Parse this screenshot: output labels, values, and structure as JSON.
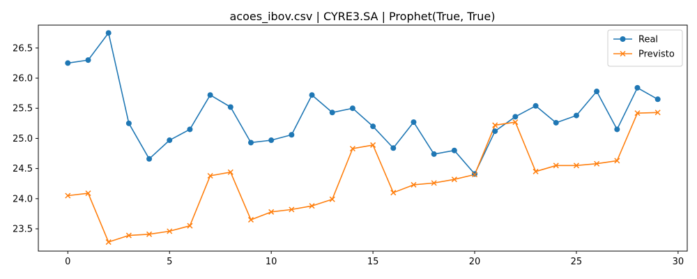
{
  "chart_data": {
    "type": "line",
    "title": "acoes_ibov.csv | CYRE3.SA | Prophet(True, True)",
    "xlabel": "",
    "ylabel": "",
    "xlim": [
      -1.45,
      30.45
    ],
    "ylim": [
      23.13,
      26.88
    ],
    "xticks": [
      0,
      5,
      10,
      15,
      20,
      25,
      30
    ],
    "yticks": [
      23.5,
      24.0,
      24.5,
      25.0,
      25.5,
      26.0,
      26.5
    ],
    "ytick_labels": [
      "23.5",
      "24.0",
      "24.5",
      "25.0",
      "25.5",
      "26.0",
      "26.5"
    ],
    "grid": false,
    "legend": "top-right",
    "x": [
      0,
      1,
      2,
      3,
      4,
      5,
      6,
      7,
      8,
      9,
      10,
      11,
      12,
      13,
      14,
      15,
      16,
      17,
      18,
      19,
      20,
      21,
      22,
      23,
      24,
      25,
      26,
      27,
      28,
      29
    ],
    "series": [
      {
        "name": "Real",
        "color": "#1f77b4",
        "marker": "circle",
        "values": [
          26.25,
          26.3,
          26.75,
          25.25,
          24.66,
          24.97,
          25.15,
          25.72,
          25.52,
          24.93,
          24.97,
          25.06,
          25.72,
          25.43,
          25.5,
          25.2,
          24.84,
          25.27,
          24.74,
          24.8,
          24.41,
          25.12,
          25.36,
          25.54,
          25.26,
          25.38,
          25.78,
          25.15,
          25.84,
          25.65
        ]
      },
      {
        "name": "Previsto",
        "color": "#ff7f0e",
        "marker": "x",
        "values": [
          24.05,
          24.09,
          23.28,
          23.39,
          23.41,
          23.46,
          23.55,
          24.38,
          24.44,
          23.65,
          23.78,
          23.82,
          23.88,
          23.99,
          24.83,
          24.89,
          24.1,
          24.23,
          24.26,
          24.32,
          24.4,
          25.22,
          25.27,
          24.45,
          24.55,
          24.55,
          24.58,
          24.63,
          25.42,
          25.43
        ]
      }
    ]
  }
}
